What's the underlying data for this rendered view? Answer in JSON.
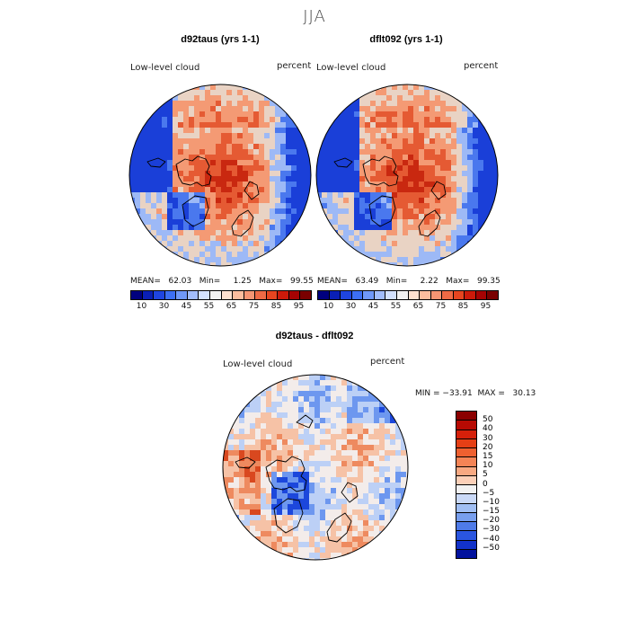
{
  "figure": {
    "title": "JJA",
    "panels": [
      {
        "title": "d92taus (yrs 1-1)",
        "variable": "Low-level cloud",
        "units": "percent",
        "stats": "MEAN=   62.03   Min=     1.25   Max=   99.55"
      },
      {
        "title": "dflt092 (yrs 1-1)",
        "variable": "Low-level cloud",
        "units": "percent",
        "stats": "MEAN=   63.49   Min=     2.22   Max=   99.35"
      },
      {
        "title": "d92taus - dflt092",
        "variable": "Low-level cloud",
        "units": "percent",
        "stats": "MIN = −33.91  MAX =   30.13"
      }
    ]
  },
  "colorbar_abs": {
    "labels": [
      "10",
      "30",
      "45",
      "55",
      "65",
      "75",
      "85",
      "95"
    ],
    "colors": [
      "#00007f",
      "#0a1fb5",
      "#1f45e0",
      "#3d6ff2",
      "#6f98f7",
      "#a2bdfa",
      "#d3e1fd",
      "#f2f2f2",
      "#fde0cf",
      "#fbbd9e",
      "#f59573",
      "#ef6a45",
      "#e64520",
      "#cc1a0a",
      "#a60303",
      "#7a0000"
    ]
  },
  "colorbar_diff": {
    "labels": [
      "50",
      "40",
      "30",
      "20",
      "15",
      "10",
      "5",
      "0",
      "−5",
      "−10",
      "−15",
      "−20",
      "−30",
      "−40",
      "−50"
    ],
    "colors": [
      "#8b0000",
      "#b70a03",
      "#d5200a",
      "#e53f15",
      "#ee6030",
      "#f48456",
      "#f8a982",
      "#fcd0b8",
      "#f2f2f2",
      "#cad9f7",
      "#a1bff4",
      "#789fee",
      "#4f7be8",
      "#2a55e0",
      "#1232c9",
      "#02129e"
    ]
  },
  "map_palette": {
    "abs": [
      "#1a3fd8",
      "#4a78ee",
      "#9db9f6",
      "#e9d3c4",
      "#f49a74",
      "#e55a33",
      "#c92810",
      "#9b0e02"
    ],
    "diff": [
      "#1c47dc",
      "#6d97ef",
      "#bcd0f6",
      "#f3ecea",
      "#f6c2a6",
      "#ee8a5f",
      "#d9481f"
    ]
  }
}
